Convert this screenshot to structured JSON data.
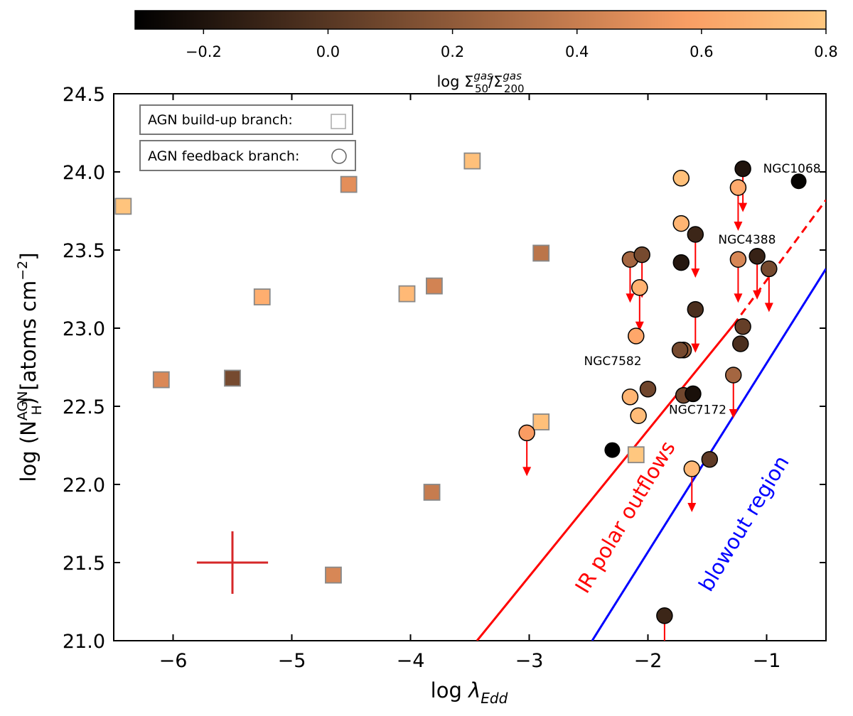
{
  "chart_data": {
    "type": "scatter",
    "xlabel": "log λ_Edd",
    "ylabel": "log (N_H^AGN) [atoms cm^−2]",
    "xlim": [
      -6.5,
      -0.5
    ],
    "ylim": [
      21.0,
      24.5
    ],
    "x_ticks": [
      -6,
      -5,
      -4,
      -3,
      -2,
      -1
    ],
    "x_tick_labels": [
      "−6",
      "−5",
      "−4",
      "−3",
      "−2",
      "−1"
    ],
    "y_ticks": [
      21.0,
      21.5,
      22.0,
      22.5,
      23.0,
      23.5,
      24.0,
      24.5
    ],
    "y_tick_labels": [
      "21.0",
      "21.5",
      "22.0",
      "22.5",
      "23.0",
      "23.5",
      "24.0",
      "24.5"
    ],
    "colorbar": {
      "label": "log Σ_50^gas/Σ_200^gas",
      "range": [
        -0.31,
        0.8
      ],
      "ticks": [
        -0.2,
        0.0,
        0.2,
        0.4,
        0.6,
        0.8
      ],
      "tick_labels": [
        "−0.2",
        "0.0",
        "0.2",
        "0.4",
        "0.6",
        "0.8"
      ],
      "colormap": "copper",
      "position": "top"
    },
    "legend": {
      "placement": "top-left",
      "entries": [
        {
          "label": "AGN build-up branch:",
          "marker": "square"
        },
        {
          "label": "AGN feedback branch:",
          "marker": "circle"
        }
      ]
    },
    "series": [
      {
        "name": "AGN build-up branch",
        "marker": "square",
        "points": [
          {
            "x": -6.42,
            "y": 23.78,
            "c": 0.78
          },
          {
            "x": -4.52,
            "y": 23.92,
            "c": 0.48
          },
          {
            "x": -3.48,
            "y": 24.07,
            "c": 0.76
          },
          {
            "x": -5.25,
            "y": 23.2,
            "c": 0.66
          },
          {
            "x": -4.03,
            "y": 23.22,
            "c": 0.72
          },
          {
            "x": -3.8,
            "y": 23.27,
            "c": 0.42
          },
          {
            "x": -2.9,
            "y": 23.48,
            "c": 0.34
          },
          {
            "x": -6.1,
            "y": 22.67,
            "c": 0.45
          },
          {
            "x": -5.5,
            "y": 22.68,
            "c": 0.1
          },
          {
            "x": -2.9,
            "y": 22.4,
            "c": 0.76
          },
          {
            "x": -2.1,
            "y": 22.19,
            "c": 0.8
          },
          {
            "x": -3.82,
            "y": 21.95,
            "c": 0.38
          },
          {
            "x": -4.65,
            "y": 21.42,
            "c": 0.44
          }
        ]
      },
      {
        "name": "AGN feedback branch",
        "marker": "circle",
        "points": [
          {
            "x": -1.2,
            "y": 24.02,
            "c": -0.2,
            "upper_limit": true
          },
          {
            "x": -0.73,
            "y": 23.94,
            "c": -0.29,
            "label": "NGC1068"
          },
          {
            "x": -1.72,
            "y": 23.96,
            "c": 0.76
          },
          {
            "x": -1.24,
            "y": 23.9,
            "c": 0.64,
            "upper_limit": true
          },
          {
            "x": -1.72,
            "y": 23.67,
            "c": 0.7
          },
          {
            "x": -1.6,
            "y": 23.6,
            "c": -0.1,
            "upper_limit": true
          },
          {
            "x": -1.72,
            "y": 23.42,
            "c": -0.18
          },
          {
            "x": -2.15,
            "y": 23.44,
            "c": 0.26,
            "upper_limit": true
          },
          {
            "x": -2.05,
            "y": 23.47,
            "c": 0.1,
            "upper_limit": true
          },
          {
            "x": -2.07,
            "y": 23.26,
            "c": 0.68,
            "upper_limit": true
          },
          {
            "x": -1.24,
            "y": 23.44,
            "c": 0.44,
            "upper_limit": true,
            "label": "NGC4388"
          },
          {
            "x": -1.08,
            "y": 23.46,
            "c": -0.12,
            "upper_limit": true
          },
          {
            "x": -0.98,
            "y": 23.38,
            "c": 0.1,
            "upper_limit": true
          },
          {
            "x": -1.6,
            "y": 23.12,
            "c": -0.05,
            "upper_limit": true
          },
          {
            "x": -2.1,
            "y": 22.95,
            "c": 0.62
          },
          {
            "x": -1.2,
            "y": 23.01,
            "c": 0.04
          },
          {
            "x": -1.22,
            "y": 22.9,
            "c": -0.05
          },
          {
            "x": -1.7,
            "y": 22.86,
            "c": 0.2
          },
          {
            "x": -1.73,
            "y": 22.86,
            "c": 0.1
          },
          {
            "x": -2.0,
            "y": 22.61,
            "c": 0.08,
            "label": "NGC7582"
          },
          {
            "x": -2.15,
            "y": 22.56,
            "c": 0.7
          },
          {
            "x": -1.7,
            "y": 22.57,
            "c": 0.08
          },
          {
            "x": -1.62,
            "y": 22.58,
            "c": -0.22,
            "label": "NGC7172"
          },
          {
            "x": -2.08,
            "y": 22.44,
            "c": 0.74
          },
          {
            "x": -1.28,
            "y": 22.7,
            "c": 0.26,
            "upper_limit": true
          },
          {
            "x": -3.02,
            "y": 22.33,
            "c": 0.56,
            "upper_limit": true
          },
          {
            "x": -2.3,
            "y": 22.22,
            "c": -0.31
          },
          {
            "x": -1.48,
            "y": 22.16,
            "c": 0.02
          },
          {
            "x": -1.63,
            "y": 22.1,
            "c": 0.72,
            "upper_limit": true
          },
          {
            "x": -1.86,
            "y": 21.16,
            "c": -0.1,
            "upper_limit": true
          }
        ]
      }
    ],
    "error_bar": {
      "x": -5.5,
      "y": 21.5,
      "dx": 0.3,
      "dy": 0.2,
      "color": "#d62728"
    },
    "lines": [
      {
        "name": "IR polar outflows",
        "color": "#ff0000",
        "points": [
          [
            -3.44,
            21.0
          ],
          [
            -1.28,
            23.02
          ]
        ],
        "style": "solid"
      },
      {
        "name": "IR polar outflows extension",
        "color": "#ff0000",
        "points": [
          [
            -1.28,
            23.02
          ],
          [
            -0.5,
            23.82
          ]
        ],
        "style": "dashed"
      },
      {
        "name": "blowout region",
        "color": "#0000ff",
        "points": [
          [
            -2.47,
            21.0
          ],
          [
            -0.5,
            23.38
          ]
        ],
        "style": "solid"
      }
    ],
    "region_labels": [
      {
        "text": "IR polar outflows",
        "color": "#ff0000"
      },
      {
        "text": "blowout region",
        "color": "#0000ff"
      }
    ]
  }
}
